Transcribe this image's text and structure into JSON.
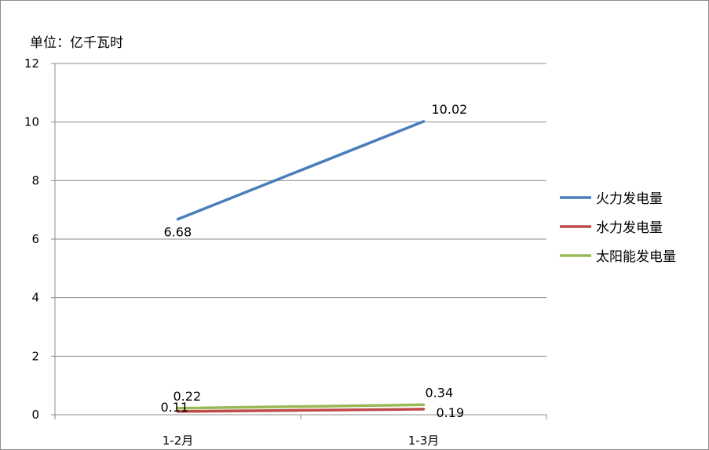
{
  "chart_data": {
    "type": "line",
    "unit_label": "单位：亿千瓦时",
    "categories": [
      "1-2月",
      "1-3月"
    ],
    "ylim": [
      0,
      12
    ],
    "yticks": [
      0,
      2,
      4,
      6,
      8,
      10,
      12
    ],
    "grid": true,
    "legend_position": "right",
    "series": [
      {
        "name": "火力发电量",
        "values": [
          6.68,
          10.02
        ],
        "labels": [
          "6.68",
          "10.02"
        ],
        "color": "#4A7EBB"
      },
      {
        "name": "水力发电量",
        "values": [
          0.11,
          0.19
        ],
        "labels": [
          "0.11",
          "0.19"
        ],
        "color": "#BE4B48"
      },
      {
        "name": "太阳能发电量",
        "values": [
          0.22,
          0.34
        ],
        "labels": [
          "0.22",
          "0.34"
        ],
        "color": "#98B954"
      }
    ]
  }
}
